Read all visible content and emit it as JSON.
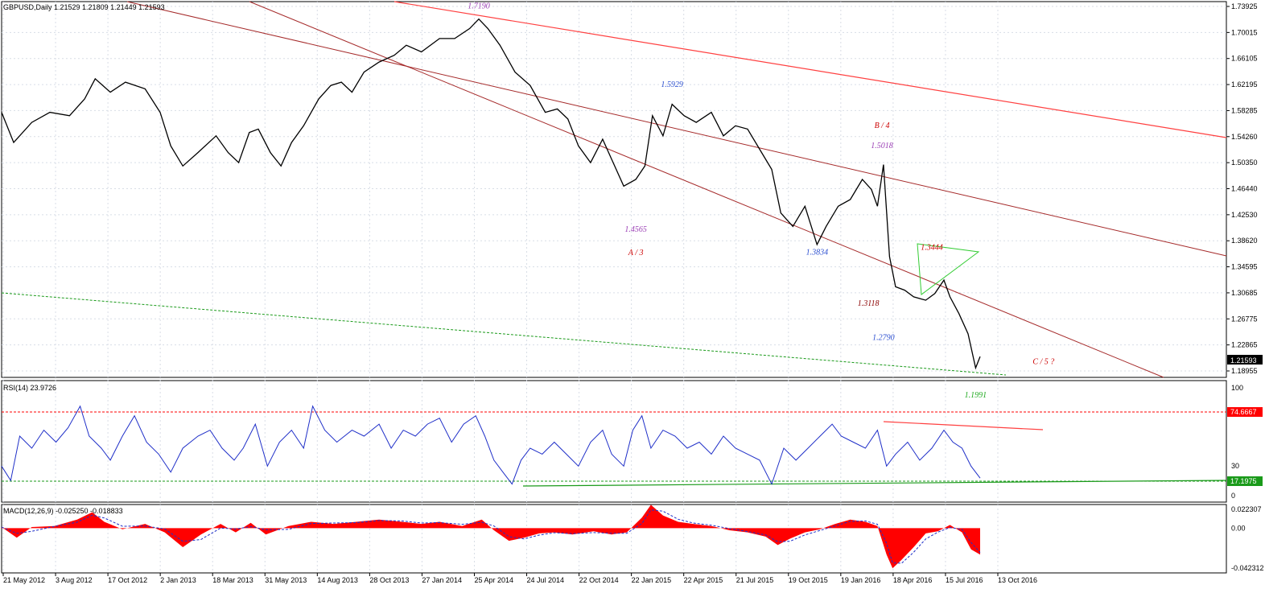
{
  "chart_data": {
    "type": "line",
    "title": "GBPUSD,Daily  1.21529 1.21809 1.21449 1.21593",
    "symbol": "GBPUSD",
    "timeframe": "Daily",
    "ohlc": {
      "open": 1.21529,
      "high": 1.21809,
      "low": 1.21449,
      "close": 1.21593
    },
    "current_price_label": "1.21593",
    "x_labels": [
      "21 May 2012",
      "3 Aug 2012",
      "17 Oct 2012",
      "2 Jan 2013",
      "18 Mar 2013",
      "31 May 2013",
      "14 Aug 2013",
      "28 Oct 2013",
      "27 Jan 2014",
      "25 Apr 2014",
      "24 Jul 2014",
      "22 Oct 2014",
      "22 Jan 2015",
      "22 Apr 2015",
      "21 Jul 2015",
      "19 Oct 2015",
      "19 Jan 2016",
      "18 Apr 2016",
      "15 Jul 2016",
      "13 Oct 2016"
    ],
    "price_ticks": [
      "1.73925",
      "1.70015",
      "1.66105",
      "1.62195",
      "1.58285",
      "1.54260",
      "1.50350",
      "1.46440",
      "1.42530",
      "1.38620",
      "1.34595",
      "1.30685",
      "1.26775",
      "1.22865",
      "1.18955"
    ],
    "ylim": [
      1.185,
      1.745
    ],
    "price_series": [
      {
        "x": 0,
        "y": 1.58
      },
      {
        "x": 8,
        "y": 1.535
      },
      {
        "x": 20,
        "y": 1.565
      },
      {
        "x": 32,
        "y": 1.58
      },
      {
        "x": 45,
        "y": 1.575
      },
      {
        "x": 55,
        "y": 1.6
      },
      {
        "x": 62,
        "y": 1.63
      },
      {
        "x": 72,
        "y": 1.61
      },
      {
        "x": 82,
        "y": 1.625
      },
      {
        "x": 95,
        "y": 1.615
      },
      {
        "x": 105,
        "y": 1.58
      },
      {
        "x": 112,
        "y": 1.53
      },
      {
        "x": 120,
        "y": 1.5
      },
      {
        "x": 130,
        "y": 1.52
      },
      {
        "x": 142,
        "y": 1.545
      },
      {
        "x": 150,
        "y": 1.52
      },
      {
        "x": 157,
        "y": 1.505
      },
      {
        "x": 164,
        "y": 1.55
      },
      {
        "x": 170,
        "y": 1.555
      },
      {
        "x": 178,
        "y": 1.52
      },
      {
        "x": 185,
        "y": 1.5
      },
      {
        "x": 192,
        "y": 1.535
      },
      {
        "x": 200,
        "y": 1.56
      },
      {
        "x": 210,
        "y": 1.6
      },
      {
        "x": 218,
        "y": 1.62
      },
      {
        "x": 225,
        "y": 1.625
      },
      {
        "x": 232,
        "y": 1.61
      },
      {
        "x": 240,
        "y": 1.64
      },
      {
        "x": 250,
        "y": 1.655
      },
      {
        "x": 260,
        "y": 1.665
      },
      {
        "x": 268,
        "y": 1.68
      },
      {
        "x": 278,
        "y": 1.67
      },
      {
        "x": 290,
        "y": 1.69
      },
      {
        "x": 300,
        "y": 1.69
      },
      {
        "x": 310,
        "y": 1.705
      },
      {
        "x": 316,
        "y": 1.719
      },
      {
        "x": 322,
        "y": 1.705
      },
      {
        "x": 330,
        "y": 1.68
      },
      {
        "x": 340,
        "y": 1.64
      },
      {
        "x": 350,
        "y": 1.62
      },
      {
        "x": 360,
        "y": 1.58
      },
      {
        "x": 368,
        "y": 1.585
      },
      {
        "x": 375,
        "y": 1.57
      },
      {
        "x": 382,
        "y": 1.53
      },
      {
        "x": 390,
        "y": 1.505
      },
      {
        "x": 398,
        "y": 1.54
      },
      {
        "x": 404,
        "y": 1.51
      },
      {
        "x": 412,
        "y": 1.47
      },
      {
        "x": 420,
        "y": 1.48
      },
      {
        "x": 426,
        "y": 1.5
      },
      {
        "x": 431,
        "y": 1.575
      },
      {
        "x": 438,
        "y": 1.545
      },
      {
        "x": 444,
        "y": 1.592
      },
      {
        "x": 452,
        "y": 1.575
      },
      {
        "x": 460,
        "y": 1.565
      },
      {
        "x": 470,
        "y": 1.58
      },
      {
        "x": 478,
        "y": 1.545
      },
      {
        "x": 486,
        "y": 1.56
      },
      {
        "x": 494,
        "y": 1.555
      },
      {
        "x": 502,
        "y": 1.525
      },
      {
        "x": 510,
        "y": 1.495
      },
      {
        "x": 516,
        "y": 1.43
      },
      {
        "x": 524,
        "y": 1.41
      },
      {
        "x": 532,
        "y": 1.44
      },
      {
        "x": 540,
        "y": 1.383
      },
      {
        "x": 546,
        "y": 1.41
      },
      {
        "x": 554,
        "y": 1.44
      },
      {
        "x": 562,
        "y": 1.45
      },
      {
        "x": 570,
        "y": 1.48
      },
      {
        "x": 576,
        "y": 1.465
      },
      {
        "x": 580,
        "y": 1.44
      },
      {
        "x": 584,
        "y": 1.502
      },
      {
        "x": 588,
        "y": 1.365
      },
      {
        "x": 592,
        "y": 1.32
      },
      {
        "x": 598,
        "y": 1.315
      },
      {
        "x": 604,
        "y": 1.305
      },
      {
        "x": 612,
        "y": 1.3
      },
      {
        "x": 618,
        "y": 1.31
      },
      {
        "x": 624,
        "y": 1.33
      },
      {
        "x": 628,
        "y": 1.305
      },
      {
        "x": 634,
        "y": 1.28
      },
      {
        "x": 640,
        "y": 1.25
      },
      {
        "x": 645,
        "y": 1.199
      },
      {
        "x": 648,
        "y": 1.216
      }
    ],
    "annotations": [
      {
        "text": "1.7190",
        "x": 316,
        "y": 1.735,
        "color": "#9b3fb5"
      },
      {
        "text": "1.5929",
        "x": 444,
        "y": 1.618,
        "color": "#2c4fd0"
      },
      {
        "text": "B / 4",
        "x": 583,
        "y": 1.557,
        "color": "#cc0000"
      },
      {
        "text": "1.5018",
        "x": 583,
        "y": 1.527,
        "color": "#9b3fb5"
      },
      {
        "text": "1.4565",
        "x": 420,
        "y": 1.402,
        "color": "#9b3fb5"
      },
      {
        "text": "A / 3",
        "x": 420,
        "y": 1.367,
        "color": "#cc0000"
      },
      {
        "text": "1.3834",
        "x": 540,
        "y": 1.368,
        "color": "#2c4fd0"
      },
      {
        "text": "1.3444",
        "x": 616,
        "y": 1.375,
        "color": "#cc0000"
      },
      {
        "text": "1.3118",
        "x": 574,
        "y": 1.292,
        "color": "#8b0000"
      },
      {
        "text": "1.2790",
        "x": 584,
        "y": 1.241,
        "color": "#2c4fd0"
      },
      {
        "text": "C / 5 ?",
        "x": 690,
        "y": 1.205,
        "color": "#cc0000"
      },
      {
        "text": "1.1991",
        "x": 645,
        "y": 1.155,
        "color": "#22aa22"
      }
    ],
    "rsi": {
      "label": "RSI(14) 23.9726",
      "ticks": [
        "100",
        "74.6667",
        "30",
        "17.1975",
        "0"
      ],
      "levels": [
        74.6667,
        17.1975
      ],
      "series": [
        {
          "x": 0,
          "y": 30
        },
        {
          "x": 6,
          "y": 18
        },
        {
          "x": 12,
          "y": 55
        },
        {
          "x": 20,
          "y": 45
        },
        {
          "x": 28,
          "y": 60
        },
        {
          "x": 36,
          "y": 50
        },
        {
          "x": 44,
          "y": 62
        },
        {
          "x": 52,
          "y": 80
        },
        {
          "x": 58,
          "y": 55
        },
        {
          "x": 66,
          "y": 45
        },
        {
          "x": 72,
          "y": 35
        },
        {
          "x": 80,
          "y": 55
        },
        {
          "x": 88,
          "y": 72
        },
        {
          "x": 96,
          "y": 50
        },
        {
          "x": 104,
          "y": 40
        },
        {
          "x": 112,
          "y": 25
        },
        {
          "x": 120,
          "y": 45
        },
        {
          "x": 130,
          "y": 55
        },
        {
          "x": 138,
          "y": 60
        },
        {
          "x": 146,
          "y": 45
        },
        {
          "x": 154,
          "y": 35
        },
        {
          "x": 160,
          "y": 45
        },
        {
          "x": 168,
          "y": 65
        },
        {
          "x": 176,
          "y": 30
        },
        {
          "x": 184,
          "y": 50
        },
        {
          "x": 192,
          "y": 60
        },
        {
          "x": 200,
          "y": 45
        },
        {
          "x": 206,
          "y": 80
        },
        {
          "x": 214,
          "y": 60
        },
        {
          "x": 222,
          "y": 50
        },
        {
          "x": 232,
          "y": 60
        },
        {
          "x": 240,
          "y": 55
        },
        {
          "x": 250,
          "y": 65
        },
        {
          "x": 258,
          "y": 45
        },
        {
          "x": 266,
          "y": 60
        },
        {
          "x": 274,
          "y": 55
        },
        {
          "x": 282,
          "y": 65
        },
        {
          "x": 290,
          "y": 70
        },
        {
          "x": 298,
          "y": 50
        },
        {
          "x": 306,
          "y": 65
        },
        {
          "x": 314,
          "y": 72
        },
        {
          "x": 320,
          "y": 55
        },
        {
          "x": 326,
          "y": 35
        },
        {
          "x": 332,
          "y": 25
        },
        {
          "x": 338,
          "y": 15
        },
        {
          "x": 344,
          "y": 35
        },
        {
          "x": 350,
          "y": 45
        },
        {
          "x": 358,
          "y": 40
        },
        {
          "x": 366,
          "y": 50
        },
        {
          "x": 374,
          "y": 40
        },
        {
          "x": 382,
          "y": 30
        },
        {
          "x": 390,
          "y": 50
        },
        {
          "x": 398,
          "y": 60
        },
        {
          "x": 404,
          "y": 40
        },
        {
          "x": 412,
          "y": 30
        },
        {
          "x": 418,
          "y": 60
        },
        {
          "x": 424,
          "y": 72
        },
        {
          "x": 430,
          "y": 45
        },
        {
          "x": 438,
          "y": 60
        },
        {
          "x": 446,
          "y": 55
        },
        {
          "x": 454,
          "y": 45
        },
        {
          "x": 462,
          "y": 50
        },
        {
          "x": 470,
          "y": 40
        },
        {
          "x": 478,
          "y": 55
        },
        {
          "x": 486,
          "y": 45
        },
        {
          "x": 494,
          "y": 40
        },
        {
          "x": 502,
          "y": 35
        },
        {
          "x": 510,
          "y": 15
        },
        {
          "x": 518,
          "y": 45
        },
        {
          "x": 526,
          "y": 35
        },
        {
          "x": 534,
          "y": 45
        },
        {
          "x": 542,
          "y": 55
        },
        {
          "x": 550,
          "y": 65
        },
        {
          "x": 556,
          "y": 55
        },
        {
          "x": 564,
          "y": 50
        },
        {
          "x": 572,
          "y": 45
        },
        {
          "x": 580,
          "y": 60
        },
        {
          "x": 586,
          "y": 30
        },
        {
          "x": 592,
          "y": 40
        },
        {
          "x": 600,
          "y": 50
        },
        {
          "x": 608,
          "y": 35
        },
        {
          "x": 616,
          "y": 45
        },
        {
          "x": 624,
          "y": 60
        },
        {
          "x": 630,
          "y": 50
        },
        {
          "x": 636,
          "y": 45
        },
        {
          "x": 642,
          "y": 30
        },
        {
          "x": 648,
          "y": 20
        }
      ]
    },
    "macd": {
      "label": "MACD(12,26,9) -0.025250 -0.018833",
      "ticks": [
        "0.022307",
        "0.00",
        "-0.042312"
      ],
      "ylim": [
        -0.042312,
        0.022307
      ],
      "series": [
        {
          "x": 0,
          "y": 0.001
        },
        {
          "x": 10,
          "y": -0.009
        },
        {
          "x": 20,
          "y": 0.001
        },
        {
          "x": 35,
          "y": 0.002
        },
        {
          "x": 50,
          "y": 0.008
        },
        {
          "x": 60,
          "y": 0.015
        },
        {
          "x": 68,
          "y": 0.006
        },
        {
          "x": 80,
          "y": -0.001
        },
        {
          "x": 95,
          "y": 0.004
        },
        {
          "x": 108,
          "y": -0.004
        },
        {
          "x": 120,
          "y": -0.018
        },
        {
          "x": 132,
          "y": -0.006
        },
        {
          "x": 145,
          "y": 0.004
        },
        {
          "x": 155,
          "y": -0.004
        },
        {
          "x": 165,
          "y": 0.005
        },
        {
          "x": 175,
          "y": -0.006
        },
        {
          "x": 190,
          "y": 0.002
        },
        {
          "x": 205,
          "y": 0.006
        },
        {
          "x": 220,
          "y": 0.004
        },
        {
          "x": 235,
          "y": 0.006
        },
        {
          "x": 250,
          "y": 0.008
        },
        {
          "x": 265,
          "y": 0.006
        },
        {
          "x": 278,
          "y": 0.004
        },
        {
          "x": 290,
          "y": 0.006
        },
        {
          "x": 305,
          "y": 0.002
        },
        {
          "x": 318,
          "y": 0.008
        },
        {
          "x": 326,
          "y": -0.002
        },
        {
          "x": 336,
          "y": -0.012
        },
        {
          "x": 346,
          "y": -0.009
        },
        {
          "x": 356,
          "y": -0.005
        },
        {
          "x": 366,
          "y": -0.004
        },
        {
          "x": 378,
          "y": -0.006
        },
        {
          "x": 392,
          "y": -0.003
        },
        {
          "x": 404,
          "y": -0.006
        },
        {
          "x": 414,
          "y": -0.004
        },
        {
          "x": 424,
          "y": 0.01
        },
        {
          "x": 430,
          "y": 0.022
        },
        {
          "x": 438,
          "y": 0.012
        },
        {
          "x": 448,
          "y": 0.006
        },
        {
          "x": 458,
          "y": 0.004
        },
        {
          "x": 470,
          "y": 0.002
        },
        {
          "x": 482,
          "y": -0.002
        },
        {
          "x": 494,
          "y": -0.004
        },
        {
          "x": 506,
          "y": -0.008
        },
        {
          "x": 514,
          "y": -0.016
        },
        {
          "x": 522,
          "y": -0.01
        },
        {
          "x": 532,
          "y": -0.004
        },
        {
          "x": 542,
          "y": -0.001
        },
        {
          "x": 552,
          "y": 0.004
        },
        {
          "x": 562,
          "y": 0.008
        },
        {
          "x": 572,
          "y": 0.006
        },
        {
          "x": 580,
          "y": 0.002
        },
        {
          "x": 586,
          "y": -0.025
        },
        {
          "x": 590,
          "y": -0.038
        },
        {
          "x": 596,
          "y": -0.03
        },
        {
          "x": 604,
          "y": -0.018
        },
        {
          "x": 612,
          "y": -0.005
        },
        {
          "x": 620,
          "y": -0.003
        },
        {
          "x": 628,
          "y": 0.003
        },
        {
          "x": 636,
          "y": -0.004
        },
        {
          "x": 642,
          "y": -0.02
        },
        {
          "x": 648,
          "y": -0.025
        }
      ]
    },
    "colors": {
      "price": "#000000",
      "rsi_line": "#1f2fc8",
      "macd_hist": "#ff0000",
      "signal": "#1f2fc8",
      "trend_dark": "#a52a2a",
      "trend_red": "#ff4040",
      "support_green": "#1a9a1a",
      "grid": "#d8dde6"
    }
  }
}
